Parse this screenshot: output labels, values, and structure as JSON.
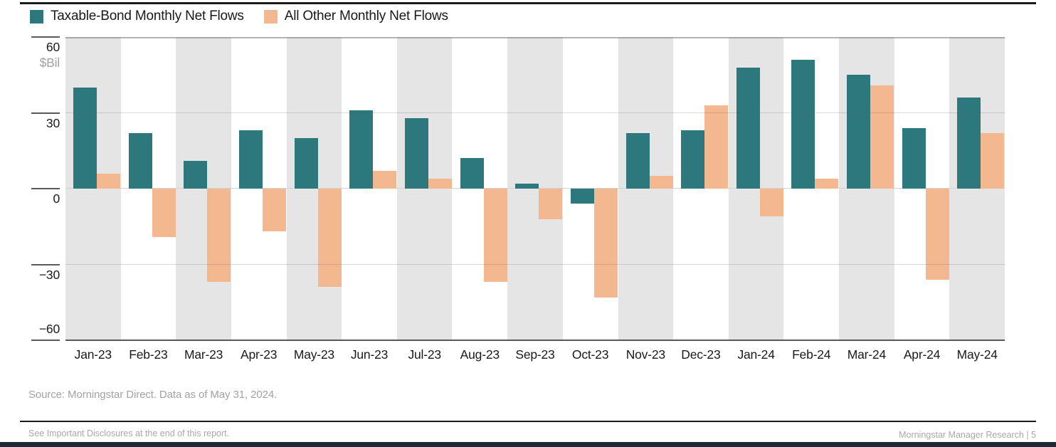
{
  "chart_data": {
    "type": "bar",
    "title": "",
    "unit_label": "$Bil",
    "categories": [
      "Jan-23",
      "Feb-23",
      "Mar-23",
      "Apr-23",
      "May-23",
      "Jun-23",
      "Jul-23",
      "Aug-23",
      "Sep-23",
      "Oct-23",
      "Nov-23",
      "Dec-23",
      "Jan-24",
      "Feb-24",
      "Mar-24",
      "Apr-24",
      "May-24"
    ],
    "series": [
      {
        "name": "Taxable-Bond Monthly Net Flows",
        "color": "#2d787c",
        "values": [
          40,
          22,
          11,
          23,
          20,
          31,
          28,
          12,
          2,
          -6,
          22,
          23,
          48,
          51,
          45,
          24,
          36
        ]
      },
      {
        "name": "All Other Monthly Net Flows",
        "color": "#f3b890",
        "values": [
          6,
          -19,
          -37,
          -17,
          -39,
          7,
          4,
          -37,
          -12,
          -43,
          5,
          33,
          -11,
          4,
          41,
          -36,
          22
        ]
      }
    ],
    "yticks": [
      {
        "label": "60",
        "value": 60
      },
      {
        "label": "30",
        "value": 30
      },
      {
        "label": "0",
        "value": 0
      },
      {
        "label": "−30",
        "value": -30
      },
      {
        "label": "−60",
        "value": -60
      }
    ],
    "ylim": [
      -63,
      60
    ],
    "grid": "horizontal",
    "legend_position": "top-left",
    "background_bands": "alternating gray/white per month",
    "band_gray_color": "#e5e5e5"
  },
  "footer": {
    "source": "Source: Morningstar Direct. Data as of May 31, 2024.",
    "disclosure": "See Important Disclosures at the end of this report.",
    "brand": "Morningstar Manager Research | 5"
  }
}
